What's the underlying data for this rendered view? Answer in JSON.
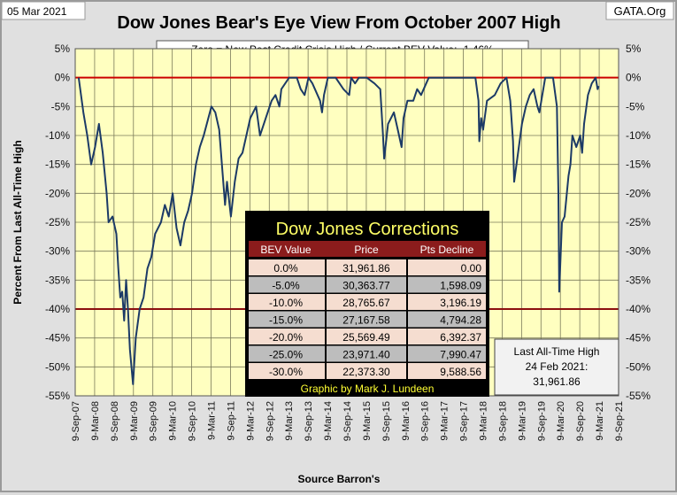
{
  "header": {
    "date": "05 Mar 2021",
    "title": "Dow Jones Bear's Eye View From October 2007 High",
    "source_tag": "GATA.Org",
    "subtitle": "Zero = New Post Credit Crisis High / Current BEV Value:  -1.46%"
  },
  "chart_data": {
    "type": "line",
    "title": "Dow Jones Bear's Eye View From October 2007 High",
    "ylabel": "Percent From Last All-Time High",
    "xlabel": "Source Barron's",
    "ylim": [
      -55,
      5
    ],
    "yticks": [
      5,
      0,
      -5,
      -10,
      -15,
      -20,
      -25,
      -30,
      -35,
      -40,
      -45,
      -50,
      -55
    ],
    "ytick_labels": [
      "5%",
      "0%",
      "-5%",
      "-10%",
      "-15%",
      "-20%",
      "-25%",
      "-30%",
      "-35%",
      "-40%",
      "-45%",
      "-50%",
      "-55%"
    ],
    "x_range": [
      2007.69,
      2021.69
    ],
    "xtick_labels": [
      "9-Sep-07",
      "9-Mar-08",
      "9-Sep-08",
      "9-Mar-09",
      "9-Sep-09",
      "9-Mar-10",
      "9-Sep-10",
      "9-Mar-11",
      "9-Sep-11",
      "9-Mar-12",
      "9-Sep-12",
      "9-Mar-13",
      "9-Sep-13",
      "9-Mar-14",
      "9-Sep-14",
      "9-Mar-15",
      "9-Sep-15",
      "9-Mar-16",
      "9-Sep-16",
      "9-Mar-17",
      "9-Sep-17",
      "9-Mar-18",
      "9-Sep-18",
      "9-Mar-19",
      "9-Sep-19",
      "9-Mar-20",
      "9-Sep-20",
      "9-Mar-21",
      "9-Sep-21"
    ],
    "reference_lines": [
      0,
      -40
    ],
    "series": [
      {
        "name": "Dow Jones BEV",
        "x": [
          2007.78,
          2007.9,
          2008.0,
          2008.1,
          2008.2,
          2008.3,
          2008.4,
          2008.5,
          2008.55,
          2008.65,
          2008.75,
          2008.8,
          2008.85,
          2008.9,
          2008.95,
          2009.0,
          2009.05,
          2009.1,
          2009.18,
          2009.25,
          2009.35,
          2009.45,
          2009.55,
          2009.65,
          2009.75,
          2009.9,
          2010.0,
          2010.1,
          2010.2,
          2010.3,
          2010.4,
          2010.5,
          2010.6,
          2010.7,
          2010.8,
          2010.9,
          2011.0,
          2011.2,
          2011.3,
          2011.4,
          2011.55,
          2011.6,
          2011.7,
          2011.8,
          2011.9,
          2012.0,
          2012.2,
          2012.35,
          2012.45,
          2012.6,
          2012.75,
          2012.85,
          2012.95,
          2013.0,
          2013.2,
          2013.4,
          2013.5,
          2013.6,
          2013.7,
          2013.8,
          2014.0,
          2014.05,
          2014.1,
          2014.2,
          2014.4,
          2014.6,
          2014.75,
          2014.8,
          2014.9,
          2015.0,
          2015.2,
          2015.4,
          2015.55,
          2015.62,
          2015.65,
          2015.75,
          2015.9,
          2016.0,
          2016.1,
          2016.15,
          2016.25,
          2016.4,
          2016.5,
          2016.6,
          2016.8,
          2016.9,
          2017.0,
          2017.5,
          2018.0,
          2018.08,
          2018.1,
          2018.15,
          2018.2,
          2018.3,
          2018.5,
          2018.65,
          2018.8,
          2018.9,
          2018.97,
          2019.0,
          2019.1,
          2019.2,
          2019.3,
          2019.4,
          2019.5,
          2019.6,
          2019.65,
          2019.8,
          2020.0,
          2020.1,
          2020.14,
          2020.16,
          2020.2,
          2020.23,
          2020.3,
          2020.4,
          2020.45,
          2020.5,
          2020.6,
          2020.7,
          2020.75,
          2020.8,
          2020.9,
          2021.0,
          2021.1,
          2021.15,
          2021.18
        ],
        "y": [
          0,
          -6,
          -10,
          -15,
          -12,
          -8,
          -13,
          -20,
          -25,
          -24,
          -27,
          -33,
          -38,
          -37,
          -42,
          -35,
          -40,
          -47,
          -53,
          -45,
          -40,
          -38,
          -33,
          -31,
          -27,
          -25,
          -22,
          -24,
          -20,
          -26,
          -29,
          -25,
          -23,
          -20,
          -15,
          -12,
          -10,
          -5,
          -6,
          -9,
          -22,
          -18,
          -24,
          -18,
          -14,
          -13,
          -7,
          -5,
          -10,
          -7,
          -4,
          -3,
          -5,
          -2,
          0,
          0,
          -2,
          -3,
          0,
          -1,
          -4,
          -6,
          -3,
          0,
          0,
          -2,
          -3,
          0,
          -1,
          0,
          0,
          -1,
          -2,
          -10,
          -14,
          -8,
          -6,
          -9,
          -12,
          -7,
          -4,
          -4,
          -2,
          -3,
          0,
          0,
          0,
          0,
          0,
          -4,
          -11,
          -7,
          -9,
          -4,
          -3,
          -1,
          0,
          -4,
          -11,
          -18,
          -13,
          -8,
          -5,
          -3,
          -2,
          -5,
          -6,
          0,
          0,
          -5,
          -20,
          -37,
          -30,
          -25,
          -24,
          -17,
          -15,
          -10,
          -12,
          -10,
          -13,
          -8,
          -3,
          -1,
          0,
          -2,
          -1.46
        ]
      }
    ]
  },
  "corrections_table": {
    "title": "Dow Jones Corrections",
    "headers": [
      "BEV Value",
      "Price",
      "Pts Decline"
    ],
    "rows": [
      [
        "0.0%",
        "31,961.86",
        "0.00"
      ],
      [
        "-5.0%",
        "30,363.77",
        "1,598.09"
      ],
      [
        "-10.0%",
        "28,765.67",
        "3,196.19"
      ],
      [
        "-15.0%",
        "27,167.58",
        "4,794.28"
      ],
      [
        "-20.0%",
        "25,569.49",
        "6,392.37"
      ],
      [
        "-25.0%",
        "23,971.40",
        "7,990.47"
      ],
      [
        "-30.0%",
        "22,373.30",
        "9,588.56"
      ]
    ],
    "footer": "Graphic by Mark J. Lundeen"
  },
  "ath_box": {
    "line1": "Last All-Time High",
    "line2": "24 Feb 2021:",
    "line3": "31,961.86"
  },
  "colors": {
    "plot_bg": "#ffffc0",
    "line": "#1c3a66",
    "ref_line": "#cc0000",
    "table_bg": "#000000",
    "table_title": "#ffff66",
    "table_header": "#ffffff",
    "table_header_bg": "#8b1c1c",
    "footer_text": "#ffff33"
  }
}
